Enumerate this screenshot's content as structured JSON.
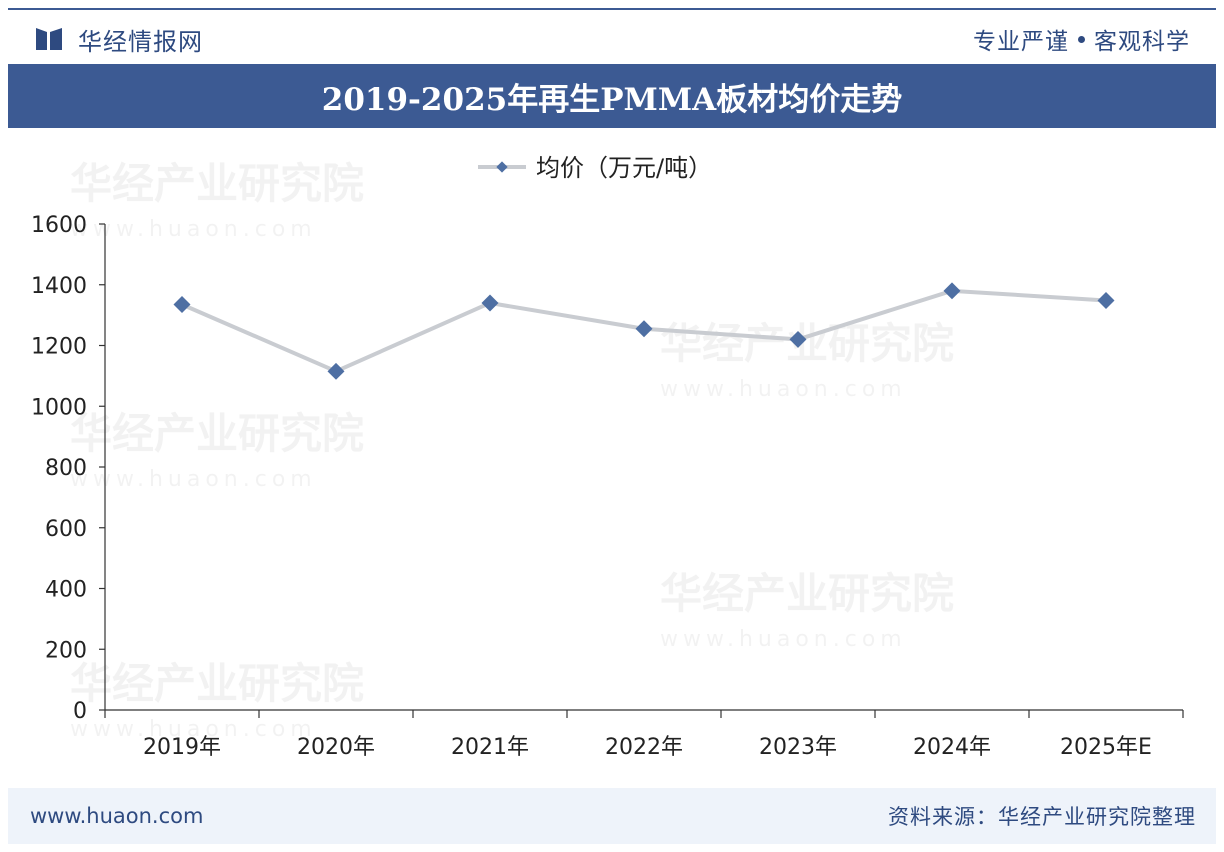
{
  "header": {
    "brand": "华经情报网",
    "slogan_left": "专业严谨",
    "slogan_right": "客观科学"
  },
  "title": "2019-2025年再生PMMA板材均价走势",
  "chart_data": {
    "type": "line",
    "categories": [
      "2019年",
      "2020年",
      "2021年",
      "2022年",
      "2023年",
      "2024年",
      "2025年E"
    ],
    "series": [
      {
        "name": "均价（万元/吨）",
        "values": [
          1335,
          1115,
          1340,
          1255,
          1220,
          1380,
          1348
        ]
      }
    ],
    "ylim": [
      0,
      1600
    ],
    "yticks": [
      "0",
      "200",
      "400",
      "600",
      "800",
      "1000",
      "1200",
      "1400",
      "1600"
    ],
    "legend": "top-center",
    "grid": false,
    "line_color": "#c9ccd1",
    "marker_color": "#4e6fa3"
  },
  "watermark": {
    "text": "华经产业研究院",
    "url": "www.huaon.com"
  },
  "footer": {
    "url": "www.huaon.com",
    "source": "资料来源：华经产业研究院整理"
  }
}
